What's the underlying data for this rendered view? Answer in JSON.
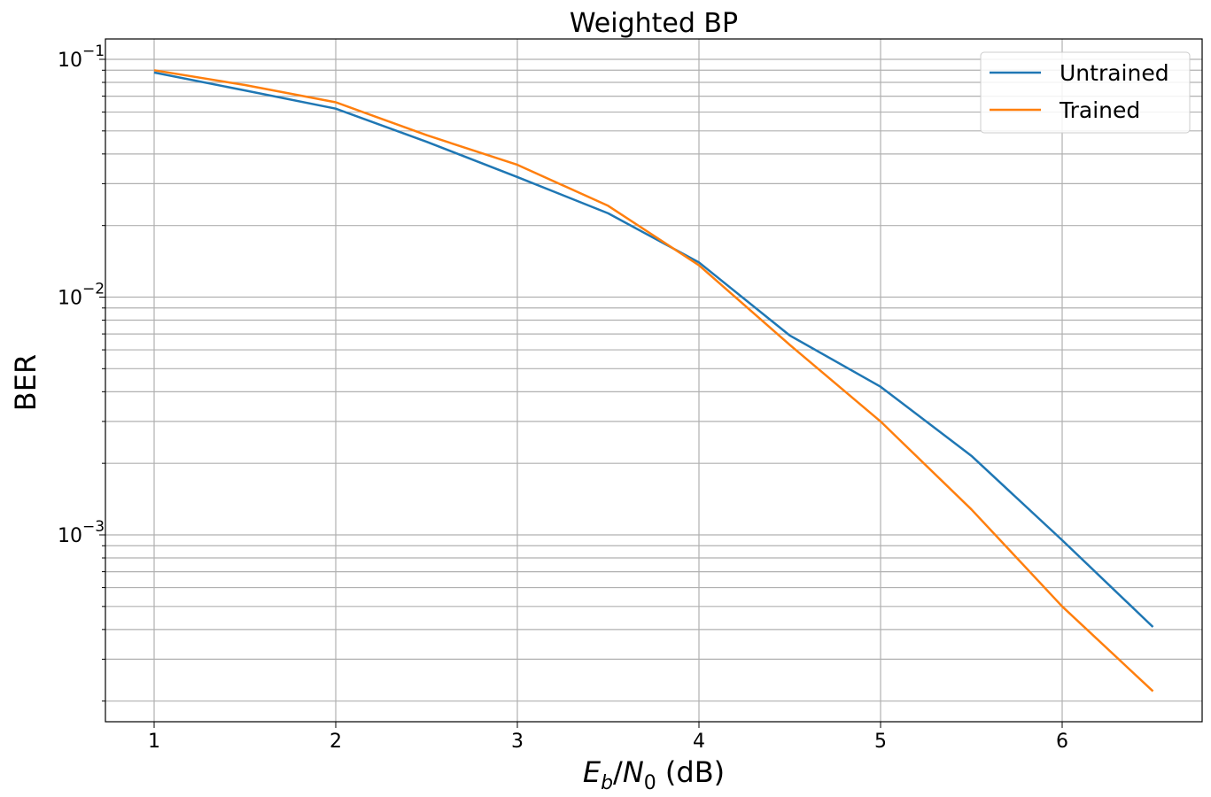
{
  "chart_data": {
    "type": "line",
    "title": "Weighted BP",
    "xlabel": "E_b/N_0 (dB)",
    "ylabel": "BER",
    "yscale": "log",
    "xlim": [
      0.72,
      6.78
    ],
    "ylim": [
      0.00017,
      0.122
    ],
    "grid": true,
    "grid_minor_y": true,
    "legend_position": "upper right",
    "x": [
      1,
      1.5,
      2,
      2.5,
      3,
      3.5,
      4,
      4.5,
      5,
      5.5,
      6,
      6.5
    ],
    "xticks": [
      1,
      2,
      3,
      4,
      5,
      6
    ],
    "yticks": [
      "10^-1",
      "10^-2",
      "10^-3"
    ],
    "series": [
      {
        "name": "Untrained",
        "color": "#1f77b4",
        "values": [
          0.088,
          0.074,
          0.062,
          0.045,
          0.032,
          0.0225,
          0.014,
          0.0069,
          0.0042,
          0.00215,
          0.00095,
          0.00041
        ]
      },
      {
        "name": "Trained",
        "color": "#ff7f0e",
        "values": [
          0.09,
          0.078,
          0.066,
          0.048,
          0.036,
          0.0242,
          0.0136,
          0.0063,
          0.003,
          0.00128,
          0.0005,
          0.00022
        ]
      }
    ]
  }
}
